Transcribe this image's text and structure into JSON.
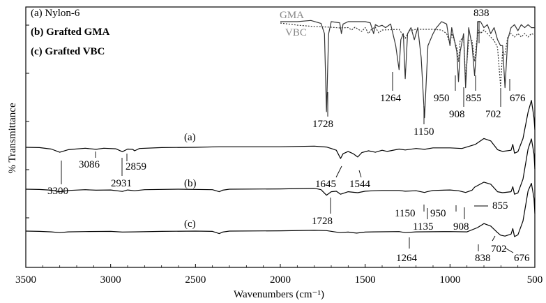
{
  "chart_data": {
    "type": "line",
    "xlabel": "Wavenumbers",
    "xlabel_unit": "(cm⁻¹)",
    "ylabel": "% Transmittance",
    "xlim": [
      3500,
      500
    ],
    "x_ticks": [
      3500,
      3000,
      2500,
      2000,
      1500,
      1000,
      500
    ],
    "x_tick_labels": [
      "3500",
      "3000",
      "2500",
      "2000",
      "1500",
      "1000",
      "500"
    ],
    "grid": false,
    "legend_entries": [
      "(a)  Nylon-6",
      "(b)  Grafted GMA",
      "(c)  Grafted VBC"
    ],
    "series": [
      {
        "name": "(a)",
        "style": "solid",
        "baseline": 0.0,
        "points": [
          [
            3500,
            0
          ],
          [
            3420,
            -1
          ],
          [
            3350,
            -6
          ],
          [
            3300,
            -17
          ],
          [
            3250,
            -8
          ],
          [
            3150,
            -3
          ],
          [
            3086,
            -7
          ],
          [
            3040,
            -3
          ],
          [
            2970,
            -5
          ],
          [
            2931,
            -15
          ],
          [
            2900,
            -6
          ],
          [
            2870,
            -7
          ],
          [
            2859,
            -12
          ],
          [
            2830,
            -4
          ],
          [
            2700,
            -1
          ],
          [
            2500,
            0
          ],
          [
            2360,
            2
          ],
          [
            2000,
            2
          ],
          [
            1800,
            4
          ],
          [
            1728,
            1
          ],
          [
            1700,
            -4
          ],
          [
            1670,
            -10
          ],
          [
            1645,
            -38
          ],
          [
            1630,
            -22
          ],
          [
            1600,
            -14
          ],
          [
            1570,
            -22
          ],
          [
            1544,
            -33
          ],
          [
            1520,
            -18
          ],
          [
            1480,
            -12
          ],
          [
            1440,
            -17
          ],
          [
            1400,
            -10
          ],
          [
            1370,
            -14
          ],
          [
            1300,
            -6
          ],
          [
            1264,
            -9
          ],
          [
            1200,
            -4
          ],
          [
            1150,
            -7
          ],
          [
            1100,
            -2
          ],
          [
            1000,
            -2
          ],
          [
            930,
            -4
          ],
          [
            850,
            10
          ],
          [
            800,
            30
          ],
          [
            760,
            22
          ],
          [
            720,
            -8
          ],
          [
            690,
            -14
          ],
          [
            640,
            -10
          ],
          [
            630,
            10
          ],
          [
            620,
            -20
          ],
          [
            600,
            -15
          ],
          [
            570,
            30
          ],
          [
            540,
            120
          ],
          [
            520,
            160
          ],
          [
            505,
            100
          ],
          [
            500,
            60
          ]
        ]
      },
      {
        "name": "(b)",
        "style": "solid",
        "baseline": 0.0,
        "points": [
          [
            3500,
            0
          ],
          [
            3420,
            -1
          ],
          [
            3350,
            -4
          ],
          [
            3300,
            -10
          ],
          [
            3250,
            -5
          ],
          [
            3150,
            -2
          ],
          [
            3086,
            -4
          ],
          [
            3000,
            -3
          ],
          [
            2931,
            -9
          ],
          [
            2900,
            -3
          ],
          [
            2859,
            -6
          ],
          [
            2800,
            -2
          ],
          [
            2600,
            0
          ],
          [
            2400,
            -2
          ],
          [
            2360,
            -10
          ],
          [
            2340,
            -4
          ],
          [
            2300,
            0
          ],
          [
            2000,
            1
          ],
          [
            1800,
            4
          ],
          [
            1760,
            -2
          ],
          [
            1728,
            -24
          ],
          [
            1700,
            -10
          ],
          [
            1670,
            -8
          ],
          [
            1645,
            -20
          ],
          [
            1600,
            -10
          ],
          [
            1544,
            -14
          ],
          [
            1500,
            -8
          ],
          [
            1450,
            -6
          ],
          [
            1400,
            -5
          ],
          [
            1300,
            -5
          ],
          [
            1264,
            -8
          ],
          [
            1200,
            -6
          ],
          [
            1150,
            -13
          ],
          [
            1135,
            -10
          ],
          [
            1100,
            -5
          ],
          [
            1000,
            -3
          ],
          [
            950,
            -6
          ],
          [
            908,
            -13
          ],
          [
            870,
            -4
          ],
          [
            855,
            8
          ],
          [
            800,
            28
          ],
          [
            760,
            20
          ],
          [
            720,
            -10
          ],
          [
            690,
            -14
          ],
          [
            640,
            -10
          ],
          [
            630,
            10
          ],
          [
            620,
            -20
          ],
          [
            600,
            -15
          ],
          [
            570,
            40
          ],
          [
            540,
            160
          ],
          [
            520,
            200
          ],
          [
            505,
            140
          ],
          [
            500,
            80
          ]
        ]
      },
      {
        "name": "(c)",
        "style": "solid",
        "baseline": 0.0,
        "points": [
          [
            3500,
            0
          ],
          [
            3420,
            -1
          ],
          [
            3350,
            -3
          ],
          [
            3300,
            -6
          ],
          [
            3250,
            -3
          ],
          [
            3150,
            -2
          ],
          [
            3000,
            -1
          ],
          [
            2931,
            -4
          ],
          [
            2859,
            -3
          ],
          [
            2700,
            -1
          ],
          [
            2500,
            0
          ],
          [
            2400,
            -1
          ],
          [
            2360,
            -10
          ],
          [
            2340,
            -4
          ],
          [
            2300,
            0
          ],
          [
            2000,
            1
          ],
          [
            1800,
            3
          ],
          [
            1728,
            2
          ],
          [
            1650,
            -6
          ],
          [
            1600,
            -4
          ],
          [
            1550,
            -8
          ],
          [
            1500,
            -4
          ],
          [
            1450,
            -3
          ],
          [
            1300,
            -2
          ],
          [
            1264,
            -6
          ],
          [
            1200,
            -3
          ],
          [
            1000,
            -2
          ],
          [
            900,
            -3
          ],
          [
            838,
            14
          ],
          [
            800,
            30
          ],
          [
            760,
            20
          ],
          [
            720,
            -6
          ],
          [
            702,
            -16
          ],
          [
            676,
            -20
          ],
          [
            640,
            -12
          ],
          [
            630,
            10
          ],
          [
            620,
            -22
          ],
          [
            600,
            -15
          ],
          [
            570,
            40
          ],
          [
            540,
            160
          ],
          [
            520,
            190
          ],
          [
            505,
            130
          ],
          [
            500,
            70
          ]
        ]
      },
      {
        "name": "GMA",
        "style": "solid",
        "baseline": 0.0,
        "points": [
          [
            2000,
            0
          ],
          [
            1900,
            0
          ],
          [
            1820,
            2
          ],
          [
            1760,
            -3
          ],
          [
            1740,
            -20
          ],
          [
            1728,
            -150
          ],
          [
            1715,
            -20
          ],
          [
            1700,
            0
          ],
          [
            1650,
            -2
          ],
          [
            1640,
            -20
          ],
          [
            1630,
            -4
          ],
          [
            1600,
            0
          ],
          [
            1560,
            0
          ],
          [
            1500,
            0
          ],
          [
            1470,
            -2
          ],
          [
            1450,
            -20
          ],
          [
            1440,
            -5
          ],
          [
            1420,
            -8
          ],
          [
            1400,
            -6
          ],
          [
            1380,
            -10
          ],
          [
            1350,
            -4
          ],
          [
            1320,
            -40
          ],
          [
            1300,
            -80
          ],
          [
            1290,
            -30
          ],
          [
            1275,
            -20
          ],
          [
            1264,
            -95
          ],
          [
            1250,
            -20
          ],
          [
            1230,
            -10
          ],
          [
            1210,
            -30
          ],
          [
            1190,
            -10
          ],
          [
            1170,
            -60
          ],
          [
            1150,
            -160
          ],
          [
            1130,
            -40
          ],
          [
            1100,
            -20
          ],
          [
            1080,
            -10
          ],
          [
            1050,
            0
          ],
          [
            1020,
            -4
          ],
          [
            1000,
            -40
          ],
          [
            990,
            -10
          ],
          [
            960,
            -50
          ],
          [
            950,
            -100
          ],
          [
            940,
            -50
          ],
          [
            920,
            -20
          ],
          [
            908,
            -110
          ],
          [
            890,
            -10
          ],
          [
            870,
            -40
          ],
          [
            855,
            -90
          ],
          [
            840,
            -30
          ],
          [
            838,
            0
          ],
          [
            820,
            0
          ],
          [
            800,
            -10
          ],
          [
            780,
            -5
          ],
          [
            760,
            -20
          ],
          [
            740,
            -10
          ],
          [
            720,
            -30
          ],
          [
            702,
            -40
          ],
          [
            690,
            -40
          ],
          [
            676,
            -110
          ],
          [
            660,
            -30
          ],
          [
            640,
            -10
          ],
          [
            620,
            -5
          ],
          [
            600,
            -15
          ],
          [
            580,
            -5
          ],
          [
            560,
            -10
          ],
          [
            540,
            -5
          ],
          [
            520,
            -10
          ],
          [
            500,
            -10
          ]
        ]
      },
      {
        "name": "VBC",
        "style": "dotted",
        "baseline": 0.0,
        "points": [
          [
            2000,
            0
          ],
          [
            1900,
            -6
          ],
          [
            1800,
            -10
          ],
          [
            1700,
            -12
          ],
          [
            1650,
            -14
          ],
          [
            1600,
            -13
          ],
          [
            1580,
            -20
          ],
          [
            1560,
            -12
          ],
          [
            1520,
            -24
          ],
          [
            1500,
            -13
          ],
          [
            1480,
            -30
          ],
          [
            1460,
            -16
          ],
          [
            1440,
            -12
          ],
          [
            1420,
            -28
          ],
          [
            1400,
            -20
          ],
          [
            1300,
            -18
          ],
          [
            1264,
            -44
          ],
          [
            1240,
            -22
          ],
          [
            1200,
            -18
          ],
          [
            1150,
            -18
          ],
          [
            1100,
            -18
          ],
          [
            1050,
            -20
          ],
          [
            1020,
            -30
          ],
          [
            1000,
            -60
          ],
          [
            990,
            -30
          ],
          [
            960,
            -70
          ],
          [
            950,
            -110
          ],
          [
            940,
            -50
          ],
          [
            920,
            -40
          ],
          [
            908,
            -160
          ],
          [
            890,
            -50
          ],
          [
            870,
            -50
          ],
          [
            855,
            -110
          ],
          [
            840,
            -40
          ],
          [
            830,
            -20
          ],
          [
            820,
            -30
          ],
          [
            800,
            -20
          ],
          [
            780,
            -30
          ],
          [
            760,
            -40
          ],
          [
            740,
            -50
          ],
          [
            720,
            -70
          ],
          [
            702,
            -180
          ],
          [
            690,
            -80
          ],
          [
            676,
            -90
          ],
          [
            660,
            -40
          ],
          [
            640,
            -30
          ],
          [
            620,
            -40
          ],
          [
            600,
            -30
          ],
          [
            580,
            -40
          ],
          [
            560,
            -30
          ],
          [
            540,
            -40
          ],
          [
            520,
            -30
          ],
          [
            500,
            -35
          ]
        ]
      }
    ],
    "peak_labels": [
      {
        "text": "3300",
        "series": "(a)"
      },
      {
        "text": "3086",
        "series": "(a)"
      },
      {
        "text": "2931",
        "series": "(a)"
      },
      {
        "text": "2859",
        "series": "(a)"
      },
      {
        "text": "1645",
        "series": "(a)"
      },
      {
        "text": "1544",
        "series": "(a)"
      },
      {
        "text": "1728",
        "series": "(b)"
      },
      {
        "text": "1150",
        "series": "(b)"
      },
      {
        "text": "1135",
        "series": "(b)"
      },
      {
        "text": "950",
        "series": "(b)"
      },
      {
        "text": "908",
        "series": "(b)"
      },
      {
        "text": "855",
        "series": "(b)"
      },
      {
        "text": "1264",
        "series": "(c)"
      },
      {
        "text": "838",
        "series": "(c)"
      },
      {
        "text": "702",
        "series": "(c)"
      },
      {
        "text": "676",
        "series": "(c)"
      },
      {
        "text": "1728",
        "series": "GMA"
      },
      {
        "text": "1264",
        "series": "GMA"
      },
      {
        "text": "1150",
        "series": "GMA"
      },
      {
        "text": "950",
        "series": "GMA"
      },
      {
        "text": "908",
        "series": "GMA"
      },
      {
        "text": "855",
        "series": "GMA"
      },
      {
        "text": "838",
        "series": "GMA"
      },
      {
        "text": "702",
        "series": "GMA"
      },
      {
        "text": "676",
        "series": "GMA"
      }
    ]
  }
}
